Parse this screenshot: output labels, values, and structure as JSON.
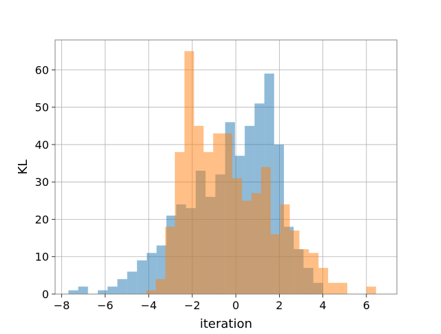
{
  "chart_data": {
    "type": "bar",
    "subtype": "overlapping-histogram",
    "title": "",
    "xlabel": "iteration",
    "ylabel": "KL",
    "xlim": [
      -8.3,
      7.4
    ],
    "ylim": [
      0,
      68
    ],
    "xticks": [
      -8,
      -6,
      -4,
      -2,
      0,
      2,
      4,
      6
    ],
    "yticks": [
      0,
      10,
      20,
      30,
      40,
      50,
      60
    ],
    "grid": true,
    "legend": "none",
    "series": [
      {
        "color": "#1f77b4",
        "alpha": 0.5,
        "bin_width": 0.45,
        "bins": [
          {
            "x0": -7.69,
            "value": 1
          },
          {
            "x0": -7.24,
            "value": 2
          },
          {
            "x0": -6.79,
            "value": 0
          },
          {
            "x0": -6.34,
            "value": 1
          },
          {
            "x0": -5.89,
            "value": 2
          },
          {
            "x0": -5.44,
            "value": 4
          },
          {
            "x0": -4.99,
            "value": 6
          },
          {
            "x0": -4.54,
            "value": 9
          },
          {
            "x0": -4.09,
            "value": 11
          },
          {
            "x0": -3.64,
            "value": 13
          },
          {
            "x0": -3.19,
            "value": 21
          },
          {
            "x0": -2.74,
            "value": 24
          },
          {
            "x0": -2.29,
            "value": 23
          },
          {
            "x0": -1.84,
            "value": 33
          },
          {
            "x0": -1.39,
            "value": 26
          },
          {
            "x0": -0.94,
            "value": 32
          },
          {
            "x0": -0.49,
            "value": 46
          },
          {
            "x0": -0.04,
            "value": 37
          },
          {
            "x0": 0.41,
            "value": 45
          },
          {
            "x0": 0.86,
            "value": 51
          },
          {
            "x0": 1.31,
            "value": 59
          },
          {
            "x0": 1.76,
            "value": 40
          },
          {
            "x0": 2.21,
            "value": 18
          },
          {
            "x0": 2.66,
            "value": 12
          },
          {
            "x0": 3.11,
            "value": 7
          },
          {
            "x0": 3.56,
            "value": 3
          }
        ]
      },
      {
        "color": "#ff7f0e",
        "alpha": 0.5,
        "bin_width": 0.44,
        "bins": [
          {
            "x0": -4.12,
            "value": 1
          },
          {
            "x0": -3.68,
            "value": 4
          },
          {
            "x0": -3.24,
            "value": 18
          },
          {
            "x0": -2.8,
            "value": 38
          },
          {
            "x0": -2.36,
            "value": 65
          },
          {
            "x0": -1.92,
            "value": 45
          },
          {
            "x0": -1.48,
            "value": 38
          },
          {
            "x0": -1.04,
            "value": 43
          },
          {
            "x0": -0.6,
            "value": 43
          },
          {
            "x0": -0.16,
            "value": 31
          },
          {
            "x0": 0.28,
            "value": 25
          },
          {
            "x0": 0.72,
            "value": 27
          },
          {
            "x0": 1.16,
            "value": 34
          },
          {
            "x0": 1.6,
            "value": 16
          },
          {
            "x0": 2.04,
            "value": 24
          },
          {
            "x0": 2.48,
            "value": 17
          },
          {
            "x0": 2.92,
            "value": 12
          },
          {
            "x0": 3.36,
            "value": 11
          },
          {
            "x0": 3.8,
            "value": 7
          },
          {
            "x0": 4.24,
            "value": 3
          },
          {
            "x0": 4.68,
            "value": 3
          },
          {
            "x0": 5.12,
            "value": 0
          },
          {
            "x0": 5.56,
            "value": 0
          },
          {
            "x0": 6.0,
            "value": 2
          }
        ]
      }
    ]
  }
}
